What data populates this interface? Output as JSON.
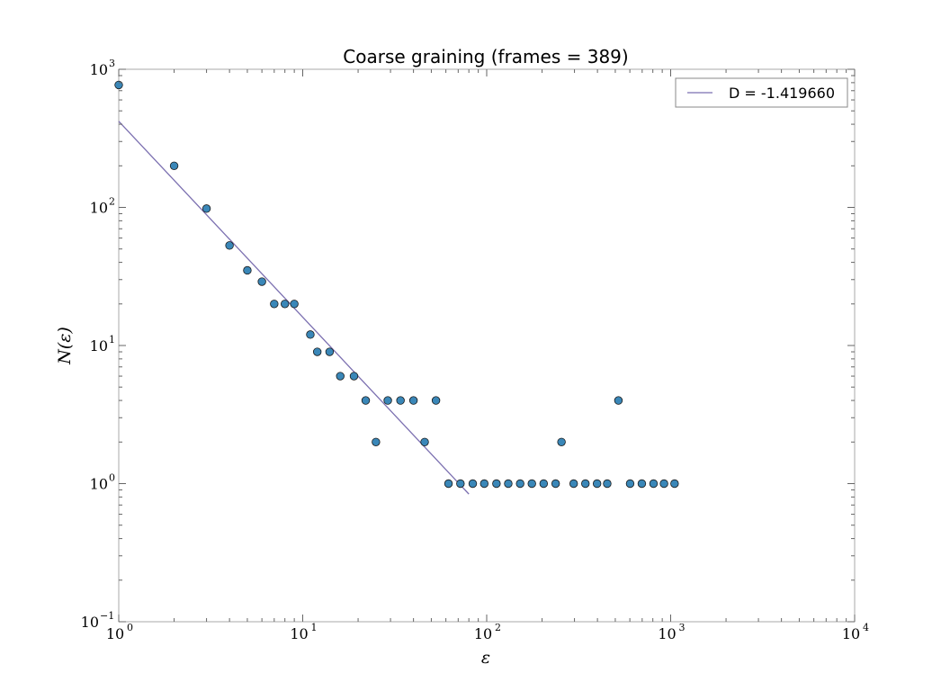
{
  "chart_data": {
    "type": "scatter",
    "title": "Coarse graining (frames = 389)",
    "xlabel": "ε",
    "ylabel": "N(ε)",
    "xscale": "log",
    "yscale": "log",
    "xlim": [
      1,
      10000
    ],
    "ylim": [
      0.1,
      1000
    ],
    "grid": false,
    "legend_placement": "top-right",
    "x_ticks": [
      {
        "base": "10",
        "exp": "0",
        "value": 1
      },
      {
        "base": "10",
        "exp": "1",
        "value": 10
      },
      {
        "base": "10",
        "exp": "2",
        "value": 100
      },
      {
        "base": "10",
        "exp": "3",
        "value": 1000
      },
      {
        "base": "10",
        "exp": "4",
        "value": 10000
      }
    ],
    "y_ticks": [
      {
        "base": "10",
        "exp": "−1",
        "value": 0.1
      },
      {
        "base": "10",
        "exp": "0",
        "value": 1
      },
      {
        "base": "10",
        "exp": "1",
        "value": 10
      },
      {
        "base": "10",
        "exp": "2",
        "value": 100
      },
      {
        "base": "10",
        "exp": "3",
        "value": 1000
      }
    ],
    "series": [
      {
        "kind": "scatter",
        "color": "#3a87b8",
        "edge_color": "#1a1a1a",
        "points": [
          [
            1,
            770
          ],
          [
            2,
            200
          ],
          [
            3,
            98
          ],
          [
            4,
            53
          ],
          [
            5,
            35
          ],
          [
            6,
            29
          ],
          [
            7,
            20
          ],
          [
            8,
            20
          ],
          [
            9,
            20
          ],
          [
            11,
            12
          ],
          [
            12,
            9
          ],
          [
            14,
            9
          ],
          [
            16,
            6
          ],
          [
            19,
            6
          ],
          [
            22,
            4
          ],
          [
            25,
            2
          ],
          [
            29,
            4
          ],
          [
            34,
            4
          ],
          [
            40,
            4
          ],
          [
            46,
            2
          ],
          [
            53,
            4
          ],
          [
            62,
            1
          ],
          [
            72,
            1
          ],
          [
            84,
            1
          ],
          [
            97,
            1
          ],
          [
            113,
            1
          ],
          [
            131,
            1
          ],
          [
            152,
            1
          ],
          [
            176,
            1
          ],
          [
            204,
            1
          ],
          [
            237,
            1
          ],
          [
            255,
            2
          ],
          [
            297,
            1
          ],
          [
            344,
            1
          ],
          [
            398,
            1
          ],
          [
            452,
            1
          ],
          [
            520,
            4
          ],
          [
            602,
            1
          ],
          [
            697,
            1
          ],
          [
            807,
            1
          ],
          [
            920,
            1
          ],
          [
            1050,
            1
          ]
        ]
      },
      {
        "kind": "line",
        "name": "D = -1.419660",
        "color": "#7b6fb0",
        "points": [
          [
            1,
            420
          ],
          [
            80,
            0.84
          ]
        ]
      }
    ]
  }
}
